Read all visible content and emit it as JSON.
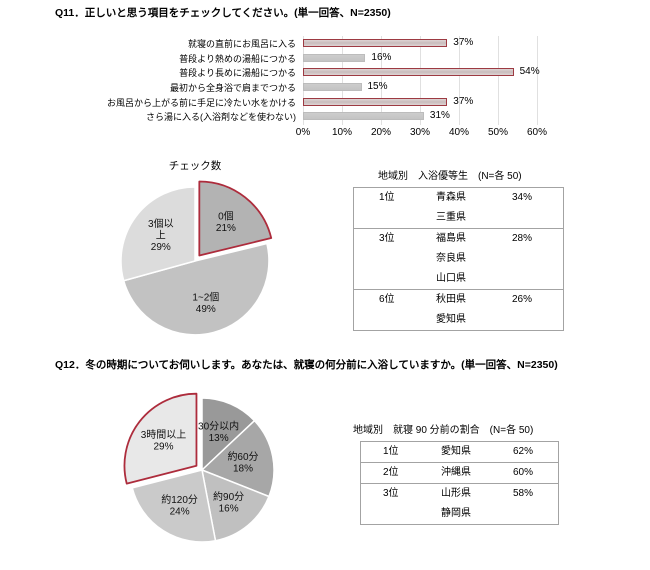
{
  "colors": {
    "accent": "#9d3a42",
    "pie_outline": "#ad2c3c",
    "bar_highlight_fill_top": "#ddd4d4",
    "bar_highlight_fill_mid": "#c9bcbc",
    "bar_fill": "#c3c3c3",
    "gridline": "#e0e0e0",
    "table_border": "#a3a3a3",
    "text": "#000000"
  },
  "q11": {
    "title": "Q11．正しいと思う項目をチェックしてください。(単一回答、N=2350)"
  },
  "q12": {
    "title": "Q12．冬の時期についてお伺いします。あなたは、就寝の何分前に入浴していますか。(単一回答、N=2350)"
  },
  "chart_data": [
    {
      "id": "q11-bars",
      "type": "bar",
      "orientation": "horizontal",
      "categories": [
        "就寝の直前にお風呂に入る",
        "普段より熱めの湯船につかる",
        "普段より長めに湯船につかる",
        "最初から全身浴で肩までつかる",
        "お風呂から上がる前に手足に冷たい水をかける",
        "さら湯に入る(入浴剤などを使わない)"
      ],
      "values": [
        37,
        16,
        54,
        15,
        37,
        31
      ],
      "value_labels": [
        "37%",
        "16%",
        "54%",
        "15%",
        "37%",
        "31%"
      ],
      "highlighted": [
        true,
        false,
        true,
        false,
        true,
        false
      ],
      "xlim": [
        0,
        60
      ],
      "xticks": [
        "0%",
        "10%",
        "20%",
        "30%",
        "40%",
        "50%",
        "60%"
      ],
      "grid": "vertical",
      "legend": "none"
    },
    {
      "id": "q11-pie",
      "type": "pie",
      "title": "チェック数",
      "start_angle_deg": 0,
      "direction": "clockwise",
      "slices": [
        {
          "label": "0個",
          "pct": 21,
          "value_label": "21%",
          "color": "#b3b3b3",
          "highlight": true,
          "explode": true
        },
        {
          "label": "1~2個",
          "pct": 49,
          "value_label": "49%",
          "color": "#c2c2c2"
        },
        {
          "label": "3個以上",
          "pct": 29,
          "value_label": "29%",
          "color": "#dcdcdc",
          "label_lines": [
            "3個以",
            "上"
          ]
        }
      ]
    },
    {
      "id": "q12-pie",
      "type": "pie",
      "title": "",
      "start_angle_deg": 0,
      "direction": "clockwise",
      "slices": [
        {
          "label": "30分以内",
          "pct": 13,
          "value_label": "13%",
          "color": "#999999"
        },
        {
          "label": "約60分",
          "pct": 18,
          "value_label": "18%",
          "color": "#a7a7a7"
        },
        {
          "label": "約90分",
          "pct": 16,
          "value_label": "16%",
          "color": "#c0c0c0"
        },
        {
          "label": "約120分",
          "pct": 24,
          "value_label": "24%",
          "color": "#cacaca"
        },
        {
          "label": "3時間以上",
          "pct": 29,
          "value_label": "29%",
          "color": "#e8e8e8",
          "highlight": true,
          "explode": true
        }
      ]
    }
  ],
  "tables": [
    {
      "id": "table-1",
      "title": "地域別　入浴優等生　(N=各 50)",
      "groups": [
        {
          "rank": "1位",
          "prefectures": [
            "青森県",
            "三重県"
          ],
          "pct": "34%"
        },
        {
          "rank": "3位",
          "prefectures": [
            "福島県",
            "奈良県",
            "山口県"
          ],
          "pct": "28%"
        },
        {
          "rank": "6位",
          "prefectures": [
            "秋田県",
            "愛知県"
          ],
          "pct": "26%"
        }
      ]
    },
    {
      "id": "table-2",
      "title": "地域別　就寝 90 分前の割合　(N=各 50)",
      "groups": [
        {
          "rank": "1位",
          "prefectures": [
            "愛知県"
          ],
          "pct": "62%"
        },
        {
          "rank": "2位",
          "prefectures": [
            "沖縄県"
          ],
          "pct": "60%"
        },
        {
          "rank": "3位",
          "prefectures": [
            "山形県",
            "静岡県"
          ],
          "pct": "58%"
        }
      ]
    }
  ]
}
